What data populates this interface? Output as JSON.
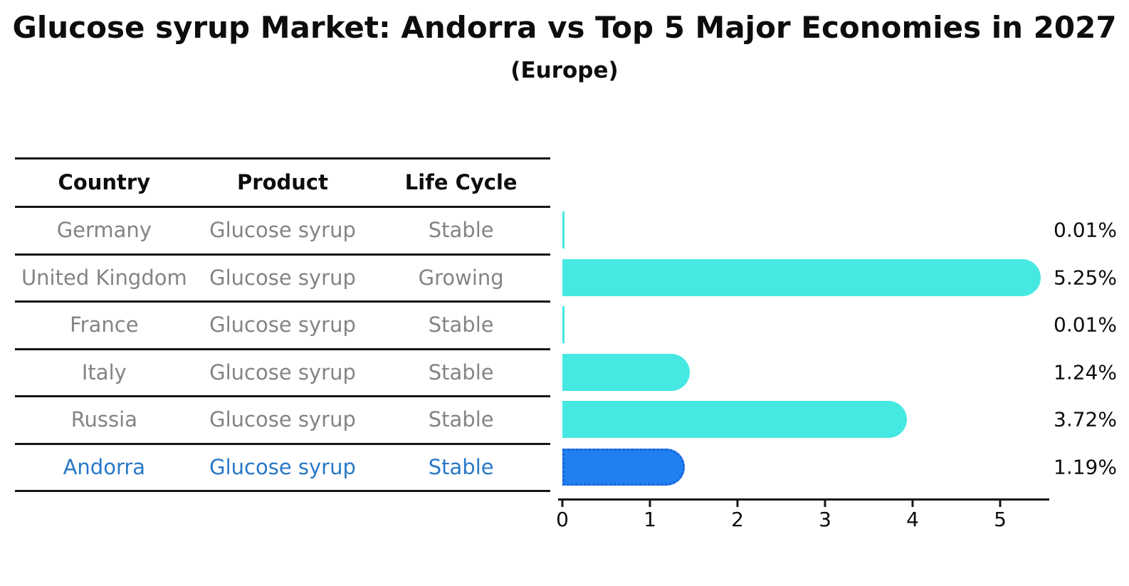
{
  "header": {
    "title": "Glucose syrup Market: Andorra vs Top 5 Major Economies in 2027",
    "subtitle": "(Europe)"
  },
  "table": {
    "columns": [
      "Country",
      "Product",
      "Life Cycle"
    ],
    "rows": [
      {
        "country": "Germany",
        "product": "Glucose syrup",
        "life_cycle": "Stable",
        "highlight": false
      },
      {
        "country": "United Kingdom",
        "product": "Glucose syrup",
        "life_cycle": "Growing",
        "highlight": false
      },
      {
        "country": "France",
        "product": "Glucose syrup",
        "life_cycle": "Stable",
        "highlight": false
      },
      {
        "country": "Italy",
        "product": "Glucose syrup",
        "life_cycle": "Stable",
        "highlight": false
      },
      {
        "country": "Russia",
        "product": "Glucose syrup",
        "life_cycle": "Stable",
        "highlight": false
      },
      {
        "country": "Andorra",
        "product": "Glucose syrup",
        "life_cycle": "Stable",
        "highlight": true
      }
    ]
  },
  "chart_data": {
    "type": "bar",
    "orientation": "horizontal",
    "title": "Glucose syrup Market: Andorra vs Top 5 Major Economies in 2027",
    "subtitle": "(Europe)",
    "categories": [
      "Germany",
      "United Kingdom",
      "France",
      "Italy",
      "Russia",
      "Andorra"
    ],
    "values": [
      0.01,
      5.25,
      0.01,
      1.24,
      3.72,
      1.19
    ],
    "value_labels": [
      "0.01%",
      "5.25%",
      "0.01%",
      "1.24%",
      "3.72%",
      "1.19%"
    ],
    "x_ticks": [
      0,
      1,
      2,
      3,
      4,
      5
    ],
    "xlim": [
      0,
      5.5
    ],
    "xlabel": "",
    "ylabel": "",
    "grid": false,
    "legend": null,
    "bar_color": "#46e8e2",
    "highlight_color": "#2080f0",
    "highlight_border_color": "#1a63d6",
    "highlight_index": 5,
    "axis_color": "#161616",
    "label_color": "#0d0d0d",
    "table_text_color": "#848484",
    "highlight_text_color": "#2878c8"
  }
}
